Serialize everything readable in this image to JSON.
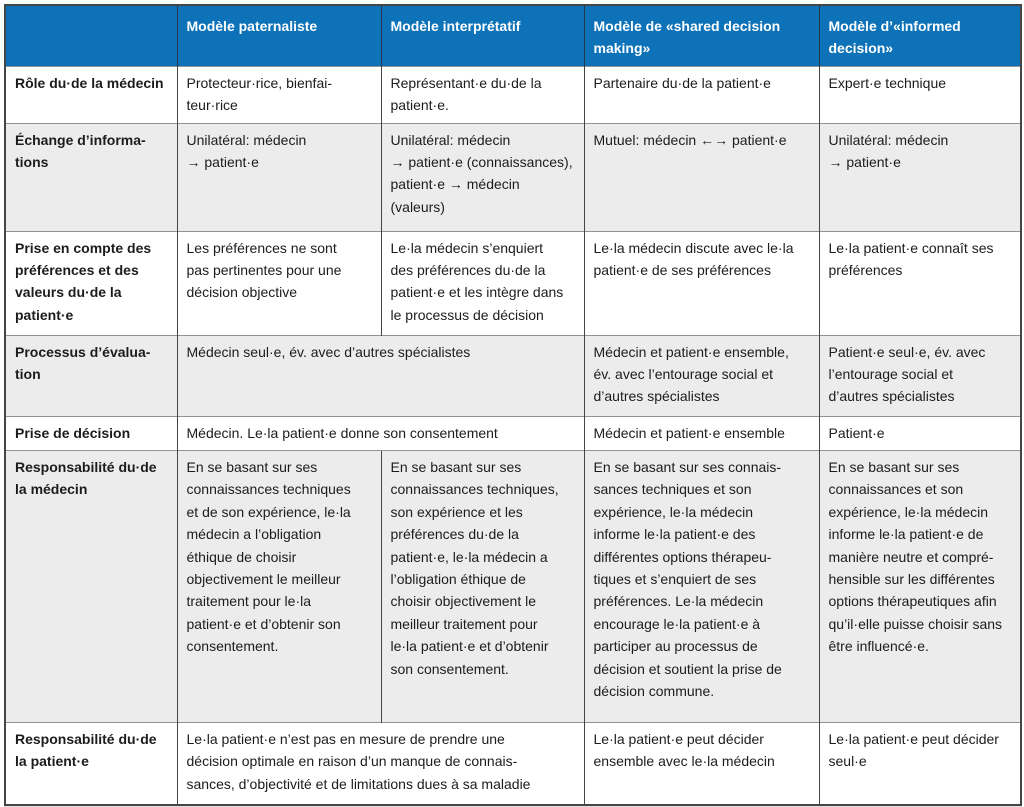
{
  "colors": {
    "header_bg": "#0d72b8",
    "header_text": "#ffffff",
    "row_alt_bg": "#ececec",
    "row_bg": "#ffffff",
    "border_dark": "#454545",
    "border_light": "#929292",
    "text": "#1c1c1c"
  },
  "table": {
    "columns": [
      "",
      "Modèle paternaliste",
      "Modèle interprétatif",
      "Modèle de «shared decision\nmaking»",
      "Modèle d’«informed\ndecision»"
    ],
    "rows": [
      {
        "header": "Rôle du·de la médecin",
        "cells": [
          "Protecteur·rice, bienfai-\nteur·rice",
          "Représentant·e du·de la\npatient·e.",
          "Partenaire du·de la patient·e",
          "Expert·e technique"
        ]
      },
      {
        "header": "Échange d’informa-\ntions",
        "cells": [
          "Unilatéral: médecin\n→ patient·e",
          "Unilatéral: médecin\n→ patient·e (connaissances),\npatient·e → médecin\n(valeurs)",
          "Mutuel: médecin ←→ patient·e",
          "Unilatéral: médecin\n→ patient·e"
        ]
      },
      {
        "header": "Prise en compte des\npréférences et des\nvaleurs du·de la\npatient·e",
        "cells": [
          "Les préférences ne sont\npas pertinentes pour une\ndécision objective",
          "Le·la médecin s’enquiert\ndes préférences du·de la\npatient·e et les intègre dans\nle processus de décision",
          "Le·la médecin discute avec le·la\npatient·e de ses préférences",
          "Le·la patient·e connaît ses\npréférences"
        ]
      },
      {
        "header": "Processus d’évalua-\ntion",
        "cells": [
          "Médecin seul·e, év. avec d’autres spécialistes",
          "Médecin et patient·e ensemble,\név. avec l’entourage social et\nd’autres spécialistes",
          "Patient·e seul·e, év. avec\nl’entourage social et\nd’autres spécialistes"
        ]
      },
      {
        "header": "Prise de décision",
        "cells": [
          "Médecin. Le·la patient·e donne son consentement",
          "Médecin et patient·e ensemble",
          "Patient·e"
        ]
      },
      {
        "header": "Responsabilité du·de\nla médecin",
        "cells": [
          "En se basant sur ses\nconnaissances techniques\net de son expérience, le·la\nmédecin a l’obligation\néthique de choisir\nobjectivement le meilleur\ntraitement pour le·la\npatient·e et d’obtenir son\nconsentement.",
          "En se basant sur ses\nconnaissances techniques,\nson expérience et les\npréférences du·de la\npatient·e, le·la médecin a\nl’obligation éthique de\nchoisir objectivement le\nmeilleur traitement pour\nle·la patient·e et d’obtenir\nson consentement.",
          "En se basant sur ses connais-\nsances techniques et son\nexpérience, le·la médecin\ninforme le·la patient·e des\ndifférentes options thérapeu-\ntiques et s’enquiert de ses\npréférences. Le·la médecin\nencourage le·la patient·e à\nparticiper au processus de\ndécision et soutient la prise de\ndécision commune.",
          "En se basant sur ses\nconnaissances et son\nexpérience, le·la médecin\ninforme le·la patient·e de\nmanière neutre et compré-\nhensible sur les différentes\noptions thérapeutiques afin\nqu’il·elle puisse choisir sans\nêtre influencé·e."
        ]
      },
      {
        "header": "Responsabilité du·de\nla patient·e",
        "cells": [
          "Le·la patient·e n’est pas en mesure de prendre une\ndécision optimale en raison d’un manque de connais-\nsances, d’objectivité et de limitations dues à sa maladie",
          "Le·la patient·e peut décider\nensemble avec le·la médecin",
          "Le·la patient·e peut décider\nseul·e"
        ]
      }
    ]
  }
}
